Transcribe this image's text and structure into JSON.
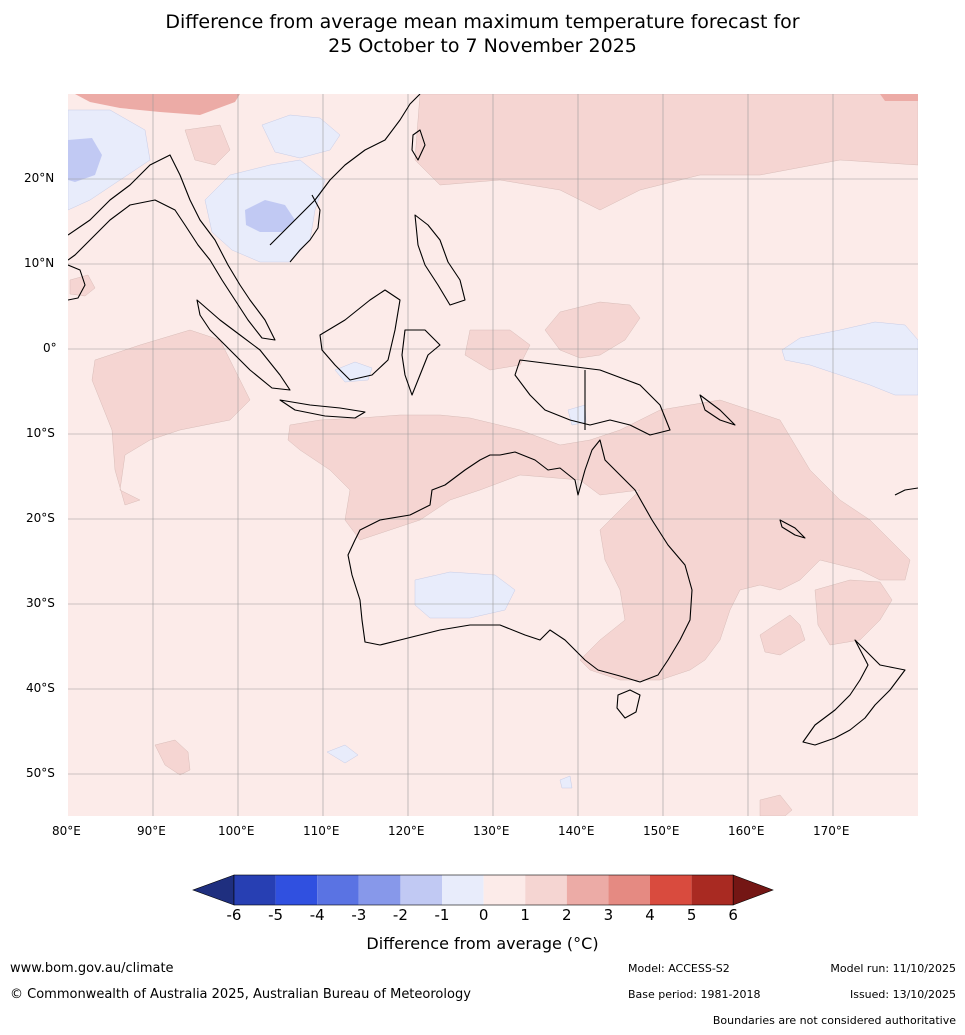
{
  "title": {
    "line1": "Difference from average mean maximum temperature forecast for",
    "line2": "25 October to 7 November 2025"
  },
  "map": {
    "lat_labels": [
      "20°N",
      "10°N",
      "0°",
      "10°S",
      "20°S",
      "30°S",
      "40°S",
      "50°S"
    ],
    "lon_labels": [
      "80°E",
      "90°E",
      "100°E",
      "110°E",
      "120°E",
      "130°E",
      "140°E",
      "150°E",
      "160°E",
      "170°E"
    ],
    "background_color": "#fcebe9"
  },
  "colorbar": {
    "ticks": [
      "-6",
      "-5",
      "-4",
      "-3",
      "-2",
      "-1",
      "0",
      "1",
      "2",
      "3",
      "4",
      "5",
      "6"
    ],
    "colors": [
      "#1f2f7f",
      "#273fb3",
      "#3050e0",
      "#5a73e3",
      "#8798ea",
      "#c1c9f3",
      "#e8ecfb",
      "#fcebe9",
      "#f5d5d2",
      "#ecaba6",
      "#e58a82",
      "#d94b3e",
      "#a92a22",
      "#741614"
    ],
    "title": "Difference from average (°C)"
  },
  "footer": {
    "url": "www.bom.gov.au/climate",
    "copyright": "© Commonwealth of Australia 2025, Australian Bureau of Meteorology",
    "model": "Model: ACCESS-S2",
    "base_period": "Base period: 1981-2018",
    "model_run": "Model run: 11/10/2025",
    "issued": "Issued: 13/10/2025",
    "disclaimer": "Boundaries are not considered authoritative"
  }
}
